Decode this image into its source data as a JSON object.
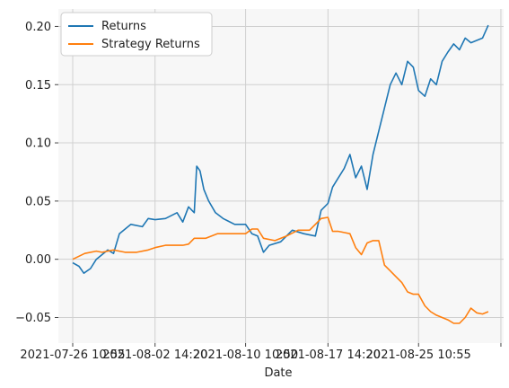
{
  "chart_data": {
    "type": "line",
    "title": "",
    "xlabel": "Date",
    "ylabel": "",
    "ylim": [
      -0.072,
      0.215
    ],
    "xlim": [
      "2021-07-25 05:00",
      "2021-09-01 20:00"
    ],
    "grid": true,
    "legend": "top-left",
    "x_tick_labels": [
      {
        "x": "2021-07-26 10:55",
        "label": "2021-07-26 10:55"
      },
      {
        "x": "2021-08-02 14:20",
        "label": "2021-08-02 14:20"
      },
      {
        "x": "2021-08-10 10:50",
        "label": "2021-08-10 10:50"
      },
      {
        "x": "2021-08-17 14:20",
        "label": "2021-08-17 14:20"
      },
      {
        "x": "2021-08-25 10:55",
        "label": "2021-08-25 10:55"
      },
      {
        "x": "2021-09-01 14:20",
        "label": ""
      }
    ],
    "y_ticks": [
      -0.05,
      0.0,
      0.05,
      0.1,
      0.15,
      0.2
    ],
    "y_tick_labels": [
      "−0.05",
      "0.00",
      "0.05",
      "0.10",
      "0.15",
      "0.20"
    ],
    "series": [
      {
        "name": "Returns",
        "color": "#1f77b4",
        "x": [
          "2021-07-26 10:55",
          "2021-07-27 00:00",
          "2021-07-27 10:00",
          "2021-07-28 00:00",
          "2021-07-28 12:00",
          "2021-07-29 12:00",
          "2021-07-30 00:00",
          "2021-07-30 12:00",
          "2021-07-31 12:00",
          "2021-08-01 12:00",
          "2021-08-02 00:00",
          "2021-08-02 14:20",
          "2021-08-03 12:00",
          "2021-08-04 12:00",
          "2021-08-05 00:00",
          "2021-08-05 12:00",
          "2021-08-06 00:00",
          "2021-08-06 05:00",
          "2021-08-06 12:00",
          "2021-08-06 20:00",
          "2021-08-07 06:00",
          "2021-08-07 20:00",
          "2021-08-08 12:00",
          "2021-08-09 12:00",
          "2021-08-10 10:50",
          "2021-08-11 00:00",
          "2021-08-11 12:00",
          "2021-08-12 00:00",
          "2021-08-12 12:00",
          "2021-08-13 12:00",
          "2021-08-14 12:00",
          "2021-08-15 12:00",
          "2021-08-16 12:00",
          "2021-08-17 00:00",
          "2021-08-17 14:20",
          "2021-08-18 00:00",
          "2021-08-18 12:00",
          "2021-08-19 00:00",
          "2021-08-19 12:00",
          "2021-08-20 00:00",
          "2021-08-20 12:00",
          "2021-08-21 00:00",
          "2021-08-21 12:00",
          "2021-08-22 00:00",
          "2021-08-22 12:00",
          "2021-08-23 00:00",
          "2021-08-23 12:00",
          "2021-08-24 00:00",
          "2021-08-24 12:00",
          "2021-08-25 00:00",
          "2021-08-25 10:55",
          "2021-08-26 00:00",
          "2021-08-26 12:00",
          "2021-08-27 00:00",
          "2021-08-27 12:00",
          "2021-08-28 00:00",
          "2021-08-28 12:00",
          "2021-08-29 00:00",
          "2021-08-29 12:00",
          "2021-08-30 00:00",
          "2021-08-30 12:00",
          "2021-08-31 00:00",
          "2021-08-31 12:00"
        ],
        "values": [
          -0.003,
          -0.006,
          -0.012,
          -0.008,
          0.0,
          0.008,
          0.005,
          0.022,
          0.03,
          0.028,
          0.035,
          0.034,
          0.035,
          0.04,
          0.032,
          0.045,
          0.04,
          0.08,
          0.076,
          0.06,
          0.05,
          0.04,
          0.035,
          0.03,
          0.03,
          0.022,
          0.02,
          0.006,
          0.012,
          0.015,
          0.025,
          0.022,
          0.02,
          0.042,
          0.048,
          0.062,
          0.07,
          0.078,
          0.09,
          0.07,
          0.08,
          0.06,
          0.09,
          0.11,
          0.13,
          0.15,
          0.16,
          0.15,
          0.17,
          0.165,
          0.145,
          0.14,
          0.155,
          0.15,
          0.17,
          0.178,
          0.185,
          0.18,
          0.19,
          0.186,
          0.188,
          0.19,
          0.201
        ]
      },
      {
        "name": "Strategy Returns",
        "color": "#ff7f0e",
        "x": [
          "2021-07-26 10:55",
          "2021-07-27 12:00",
          "2021-07-28 12:00",
          "2021-07-29 00:00",
          "2021-07-30 00:00",
          "2021-07-31 00:00",
          "2021-08-01 00:00",
          "2021-08-02 00:00",
          "2021-08-02 14:20",
          "2021-08-03 12:00",
          "2021-08-04 00:00",
          "2021-08-05 00:00",
          "2021-08-05 12:00",
          "2021-08-06 00:00",
          "2021-08-07 00:00",
          "2021-08-08 00:00",
          "2021-08-09 00:00",
          "2021-08-10 10:50",
          "2021-08-11 00:00",
          "2021-08-11 12:00",
          "2021-08-12 00:00",
          "2021-08-13 00:00",
          "2021-08-14 00:00",
          "2021-08-15 00:00",
          "2021-08-16 00:00",
          "2021-08-16 12:00",
          "2021-08-17 00:00",
          "2021-08-17 14:20",
          "2021-08-18 00:00",
          "2021-08-18 12:00",
          "2021-08-19 00:00",
          "2021-08-19 12:00",
          "2021-08-20 00:00",
          "2021-08-20 12:00",
          "2021-08-21 00:00",
          "2021-08-21 12:00",
          "2021-08-22 00:00",
          "2021-08-22 12:00",
          "2021-08-23 00:00",
          "2021-08-23 12:00",
          "2021-08-24 00:00",
          "2021-08-24 12:00",
          "2021-08-25 00:00",
          "2021-08-25 10:55",
          "2021-08-26 00:00",
          "2021-08-26 12:00",
          "2021-08-27 00:00",
          "2021-08-27 12:00",
          "2021-08-28 00:00",
          "2021-08-28 12:00",
          "2021-08-29 00:00",
          "2021-08-29 12:00",
          "2021-08-30 00:00",
          "2021-08-30 12:00",
          "2021-08-31 00:00",
          "2021-08-31 12:00"
        ],
        "values": [
          0.0,
          0.005,
          0.007,
          0.006,
          0.008,
          0.006,
          0.006,
          0.008,
          0.01,
          0.012,
          0.012,
          0.012,
          0.013,
          0.018,
          0.018,
          0.022,
          0.022,
          0.022,
          0.026,
          0.026,
          0.018,
          0.016,
          0.02,
          0.025,
          0.025,
          0.03,
          0.035,
          0.036,
          0.024,
          0.024,
          0.023,
          0.022,
          0.01,
          0.004,
          0.014,
          0.016,
          0.016,
          -0.005,
          -0.01,
          -0.015,
          -0.02,
          -0.028,
          -0.03,
          -0.03,
          -0.04,
          -0.045,
          -0.048,
          -0.05,
          -0.052,
          -0.055,
          -0.055,
          -0.05,
          -0.042,
          -0.046,
          -0.047,
          -0.045
        ]
      }
    ]
  }
}
